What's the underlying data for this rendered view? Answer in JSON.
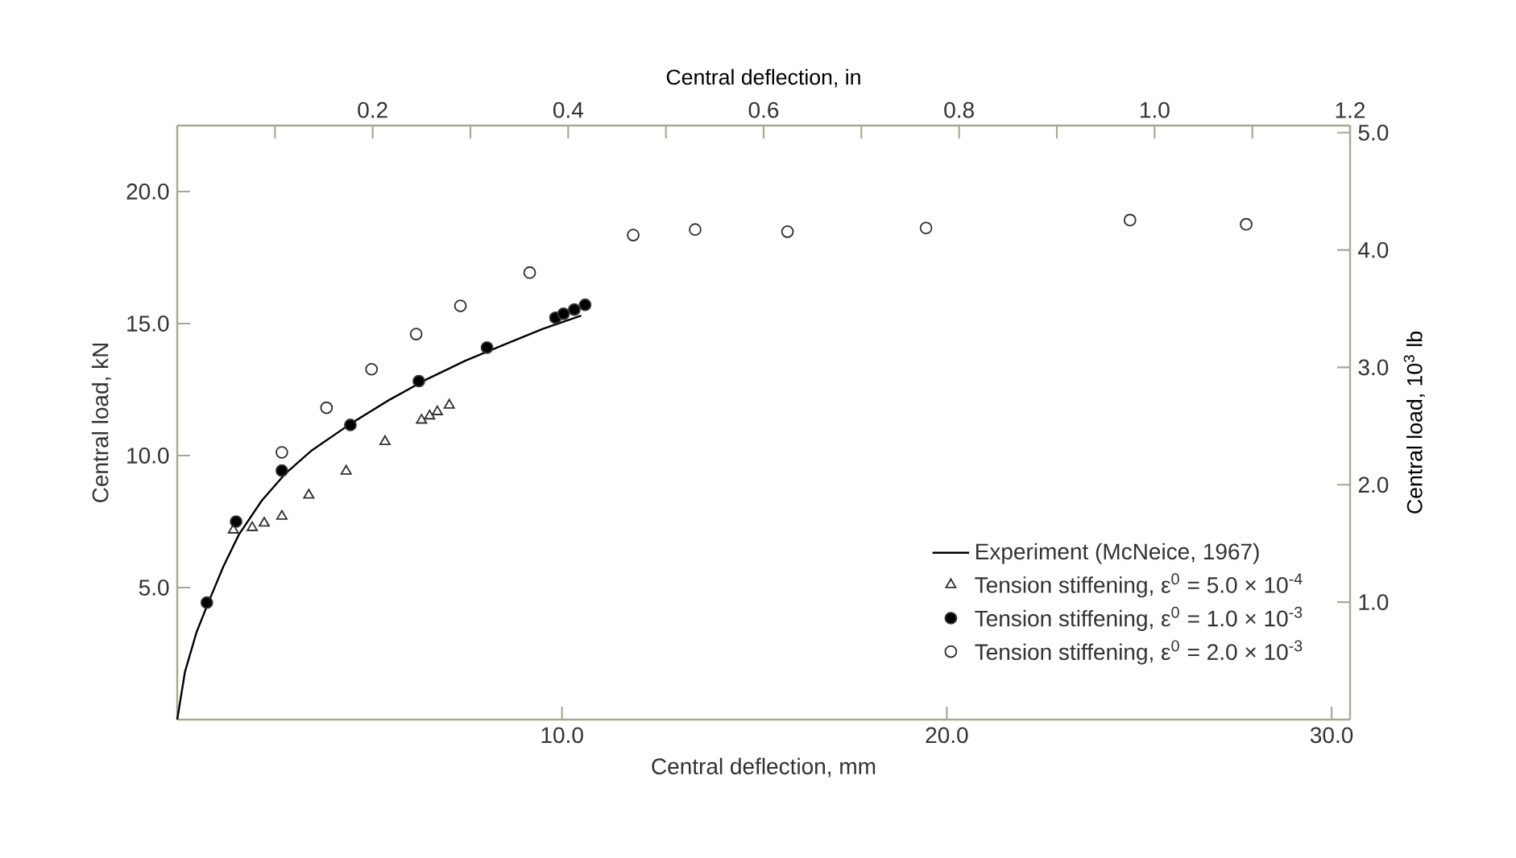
{
  "chart_data": {
    "type": "scatter",
    "xlabel": "Central deflection, mm",
    "ylabel": "Central load, kN",
    "x2label": "Central deflection, in",
    "y2label": "Central load, 10$^{3}$ lb",
    "xlim": [
      0,
      30.48
    ],
    "ylim": [
      0,
      22.5
    ],
    "x2lim": [
      0,
      1.2
    ],
    "y2lim": [
      0,
      5.06
    ],
    "xticks": [
      {
        "value": 10,
        "label": "10.0"
      },
      {
        "value": 20,
        "label": "20.0"
      },
      {
        "value": 30,
        "label": "30.0"
      }
    ],
    "yticks": [
      {
        "value": 5,
        "label": "5.0"
      },
      {
        "value": 10,
        "label": "10.0"
      },
      {
        "value": 15,
        "label": "15.0"
      },
      {
        "value": 20,
        "label": "20.0"
      }
    ],
    "x2ticks": [
      {
        "value": 0.1,
        "label": null
      },
      {
        "value": 0.2,
        "label": "0.2"
      },
      {
        "value": 0.3,
        "label": null
      },
      {
        "value": 0.4,
        "label": "0.4"
      },
      {
        "value": 0.5,
        "label": null
      },
      {
        "value": 0.6,
        "label": "0.6"
      },
      {
        "value": 0.7,
        "label": null
      },
      {
        "value": 0.8,
        "label": "0.8"
      },
      {
        "value": 0.9,
        "label": null
      },
      {
        "value": 1.0,
        "label": "1.0"
      },
      {
        "value": 1.1,
        "label": null
      },
      {
        "value": 1.2,
        "label": "1.2"
      }
    ],
    "y2ticks": [
      {
        "value": 1,
        "label": "1.0"
      },
      {
        "value": 2,
        "label": "2.0"
      },
      {
        "value": 3,
        "label": "3.0"
      },
      {
        "value": 4,
        "label": "4.0"
      },
      {
        "value": 5,
        "label": "5.0"
      }
    ],
    "legend": "bottom right",
    "series": [
      {
        "name": "Experiment (McNeice, 1967)",
        "type": "line",
        "color": "#000000",
        "marker": "none",
        "line_style": "solid",
        "x": [
          0,
          0.2,
          0.5,
          0.8,
          1.2,
          1.6,
          2.2,
          2.8,
          3.5,
          4.5,
          5.5,
          6.5,
          7.5,
          8.5,
          9.5,
          10.5
        ],
        "values": [
          0,
          1.8,
          3.3,
          4.4,
          5.8,
          7.0,
          8.3,
          9.3,
          10.2,
          11.2,
          12.1,
          12.9,
          13.6,
          14.2,
          14.8,
          15.3
        ]
      },
      {
        "name": "Tension stiffening, ε$^{0}$ = 5.0 × 10$^{-4}$",
        "color": "#ffffff",
        "marker": "triangle",
        "x": [
          1.46,
          1.95,
          2.26,
          2.72,
          3.42,
          4.39,
          5.4,
          6.35,
          6.56,
          6.76,
          7.07
        ],
        "values": [
          7.18,
          7.27,
          7.44,
          7.7,
          8.5,
          9.41,
          10.53,
          11.34,
          11.5,
          11.66,
          11.91
        ]
      },
      {
        "name": "Tension stiffening, ε$^{0}$ = 1.0 × 10$^{-3}$",
        "color": "#000000",
        "marker": "circle",
        "x": [
          0.77,
          1.53,
          2.72,
          4.5,
          6.28,
          8.05,
          9.83,
          10.04,
          10.32,
          10.6
        ],
        "values": [
          4.43,
          7.5,
          9.43,
          11.16,
          12.82,
          14.09,
          15.22,
          15.37,
          15.53,
          15.71
        ]
      },
      {
        "name": "Tension stiffening, ε$^{0}$ = 2.0 × 10$^{-3}$",
        "color": "#ffffff",
        "marker": "circle",
        "x": [
          2.72,
          3.88,
          5.05,
          6.21,
          7.36,
          9.16,
          11.85,
          13.46,
          15.86,
          19.46,
          24.76,
          27.78
        ],
        "values": [
          10.12,
          11.81,
          13.27,
          14.6,
          15.67,
          16.93,
          18.35,
          18.56,
          18.48,
          18.62,
          18.92,
          18.76
        ]
      }
    ]
  }
}
